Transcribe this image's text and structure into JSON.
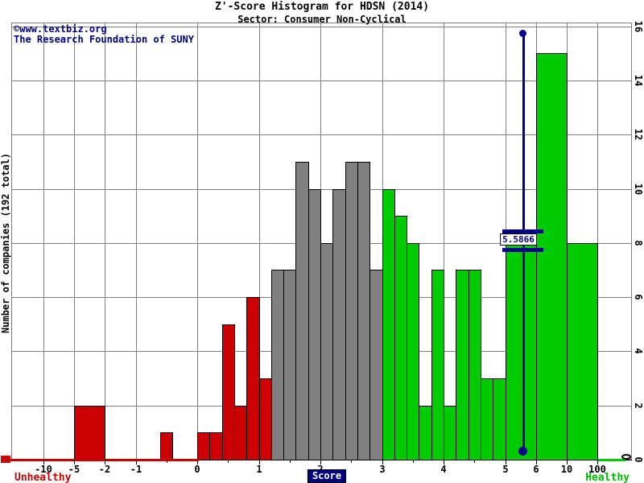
{
  "title": "Z'-Score Histogram for HDSN (2014)",
  "subtitle": "Sector: Consumer Non-Cyclical",
  "watermark": {
    "line1": "©www.textbiz.org",
    "line2": "The Research Foundation of SUNY"
  },
  "y_axis": {
    "label": "Number of companies (192 total)",
    "tick_labels": [
      "0",
      "2",
      "4",
      "6",
      "8",
      "10",
      "12",
      "14",
      "16"
    ],
    "tick_values": [
      0,
      2,
      4,
      6,
      8,
      10,
      12,
      14,
      16
    ],
    "max": 16
  },
  "x_axis": {
    "tick_labels": [
      "-10",
      "-5",
      "-2",
      "-1",
      "0",
      "1",
      "2",
      "3",
      "4",
      "5",
      "6",
      "10",
      "100"
    ],
    "tick_values": [
      -10,
      -5,
      -2,
      -1,
      0,
      1,
      2,
      3,
      4,
      5,
      6,
      10,
      100
    ],
    "minor_tick_values": [
      -0.5,
      0.5,
      1.5,
      2.5,
      3.5,
      4.5
    ],
    "label_left": "Unhealthy",
    "label_center": "Score",
    "label_right": "Healthy"
  },
  "marker": {
    "value": 5.5866,
    "label": "5.5866"
  },
  "colors": {
    "distress": "#cc0000",
    "grey": "#808080",
    "safe": "#00cc00",
    "marker": "#00008b",
    "navy": "#000080",
    "grid": "#808080",
    "axis": "#000000",
    "score_box_bg": "#000080",
    "unhealthy_text": "#cc0000",
    "healthy_text": "#00bb00"
  },
  "chart_data": {
    "type": "bar",
    "title": "Z'-Score Histogram for HDSN (2014)",
    "subtitle": "Sector: Consumer Non-Cyclical",
    "xlabel": "Score",
    "ylabel": "Number of companies (192 total)",
    "total_companies": 192,
    "ylim": [
      0,
      16
    ],
    "grid": true,
    "x_scale": "piecewise",
    "company_score": 5.5866,
    "bins": [
      {
        "lo": -5,
        "hi": -2,
        "count": 2,
        "zone": "distress"
      },
      {
        "lo": -0.6,
        "hi": -0.4,
        "count": 1,
        "zone": "distress"
      },
      {
        "lo": 0.0,
        "hi": 0.2,
        "count": 1,
        "zone": "distress"
      },
      {
        "lo": 0.2,
        "hi": 0.4,
        "count": 1,
        "zone": "distress"
      },
      {
        "lo": 0.4,
        "hi": 0.6,
        "count": 5,
        "zone": "distress"
      },
      {
        "lo": 0.6,
        "hi": 0.8,
        "count": 2,
        "zone": "distress"
      },
      {
        "lo": 0.8,
        "hi": 1.0,
        "count": 6,
        "zone": "distress"
      },
      {
        "lo": 1.0,
        "hi": 1.2,
        "count": 3,
        "zone": "distress"
      },
      {
        "lo": 1.2,
        "hi": 1.4,
        "count": 7,
        "zone": "grey"
      },
      {
        "lo": 1.4,
        "hi": 1.6,
        "count": 7,
        "zone": "grey"
      },
      {
        "lo": 1.6,
        "hi": 1.8,
        "count": 11,
        "zone": "grey"
      },
      {
        "lo": 1.8,
        "hi": 2.0,
        "count": 10,
        "zone": "grey"
      },
      {
        "lo": 2.0,
        "hi": 2.2,
        "count": 8,
        "zone": "grey"
      },
      {
        "lo": 2.2,
        "hi": 2.4,
        "count": 10,
        "zone": "grey"
      },
      {
        "lo": 2.4,
        "hi": 2.6,
        "count": 11,
        "zone": "grey"
      },
      {
        "lo": 2.6,
        "hi": 2.8,
        "count": 11,
        "zone": "grey"
      },
      {
        "lo": 2.8,
        "hi": 3.0,
        "count": 7,
        "zone": "grey"
      },
      {
        "lo": 3.0,
        "hi": 3.2,
        "count": 10,
        "zone": "safe"
      },
      {
        "lo": 3.2,
        "hi": 3.4,
        "count": 9,
        "zone": "safe"
      },
      {
        "lo": 3.4,
        "hi": 3.6,
        "count": 8,
        "zone": "safe"
      },
      {
        "lo": 3.6,
        "hi": 3.8,
        "count": 2,
        "zone": "safe"
      },
      {
        "lo": 3.8,
        "hi": 4.0,
        "count": 7,
        "zone": "safe"
      },
      {
        "lo": 4.0,
        "hi": 4.2,
        "count": 2,
        "zone": "safe"
      },
      {
        "lo": 4.2,
        "hi": 4.4,
        "count": 7,
        "zone": "safe"
      },
      {
        "lo": 4.4,
        "hi": 4.6,
        "count": 7,
        "zone": "safe"
      },
      {
        "lo": 4.6,
        "hi": 4.8,
        "count": 3,
        "zone": "safe"
      },
      {
        "lo": 4.8,
        "hi": 5.0,
        "count": 3,
        "zone": "safe"
      },
      {
        "lo": 5,
        "hi": 6,
        "count": 8,
        "zone": "safe"
      },
      {
        "lo": 6,
        "hi": 10,
        "count": 15,
        "zone": "safe"
      },
      {
        "lo": 10,
        "hi": 100,
        "count": 8,
        "zone": "safe"
      }
    ]
  }
}
